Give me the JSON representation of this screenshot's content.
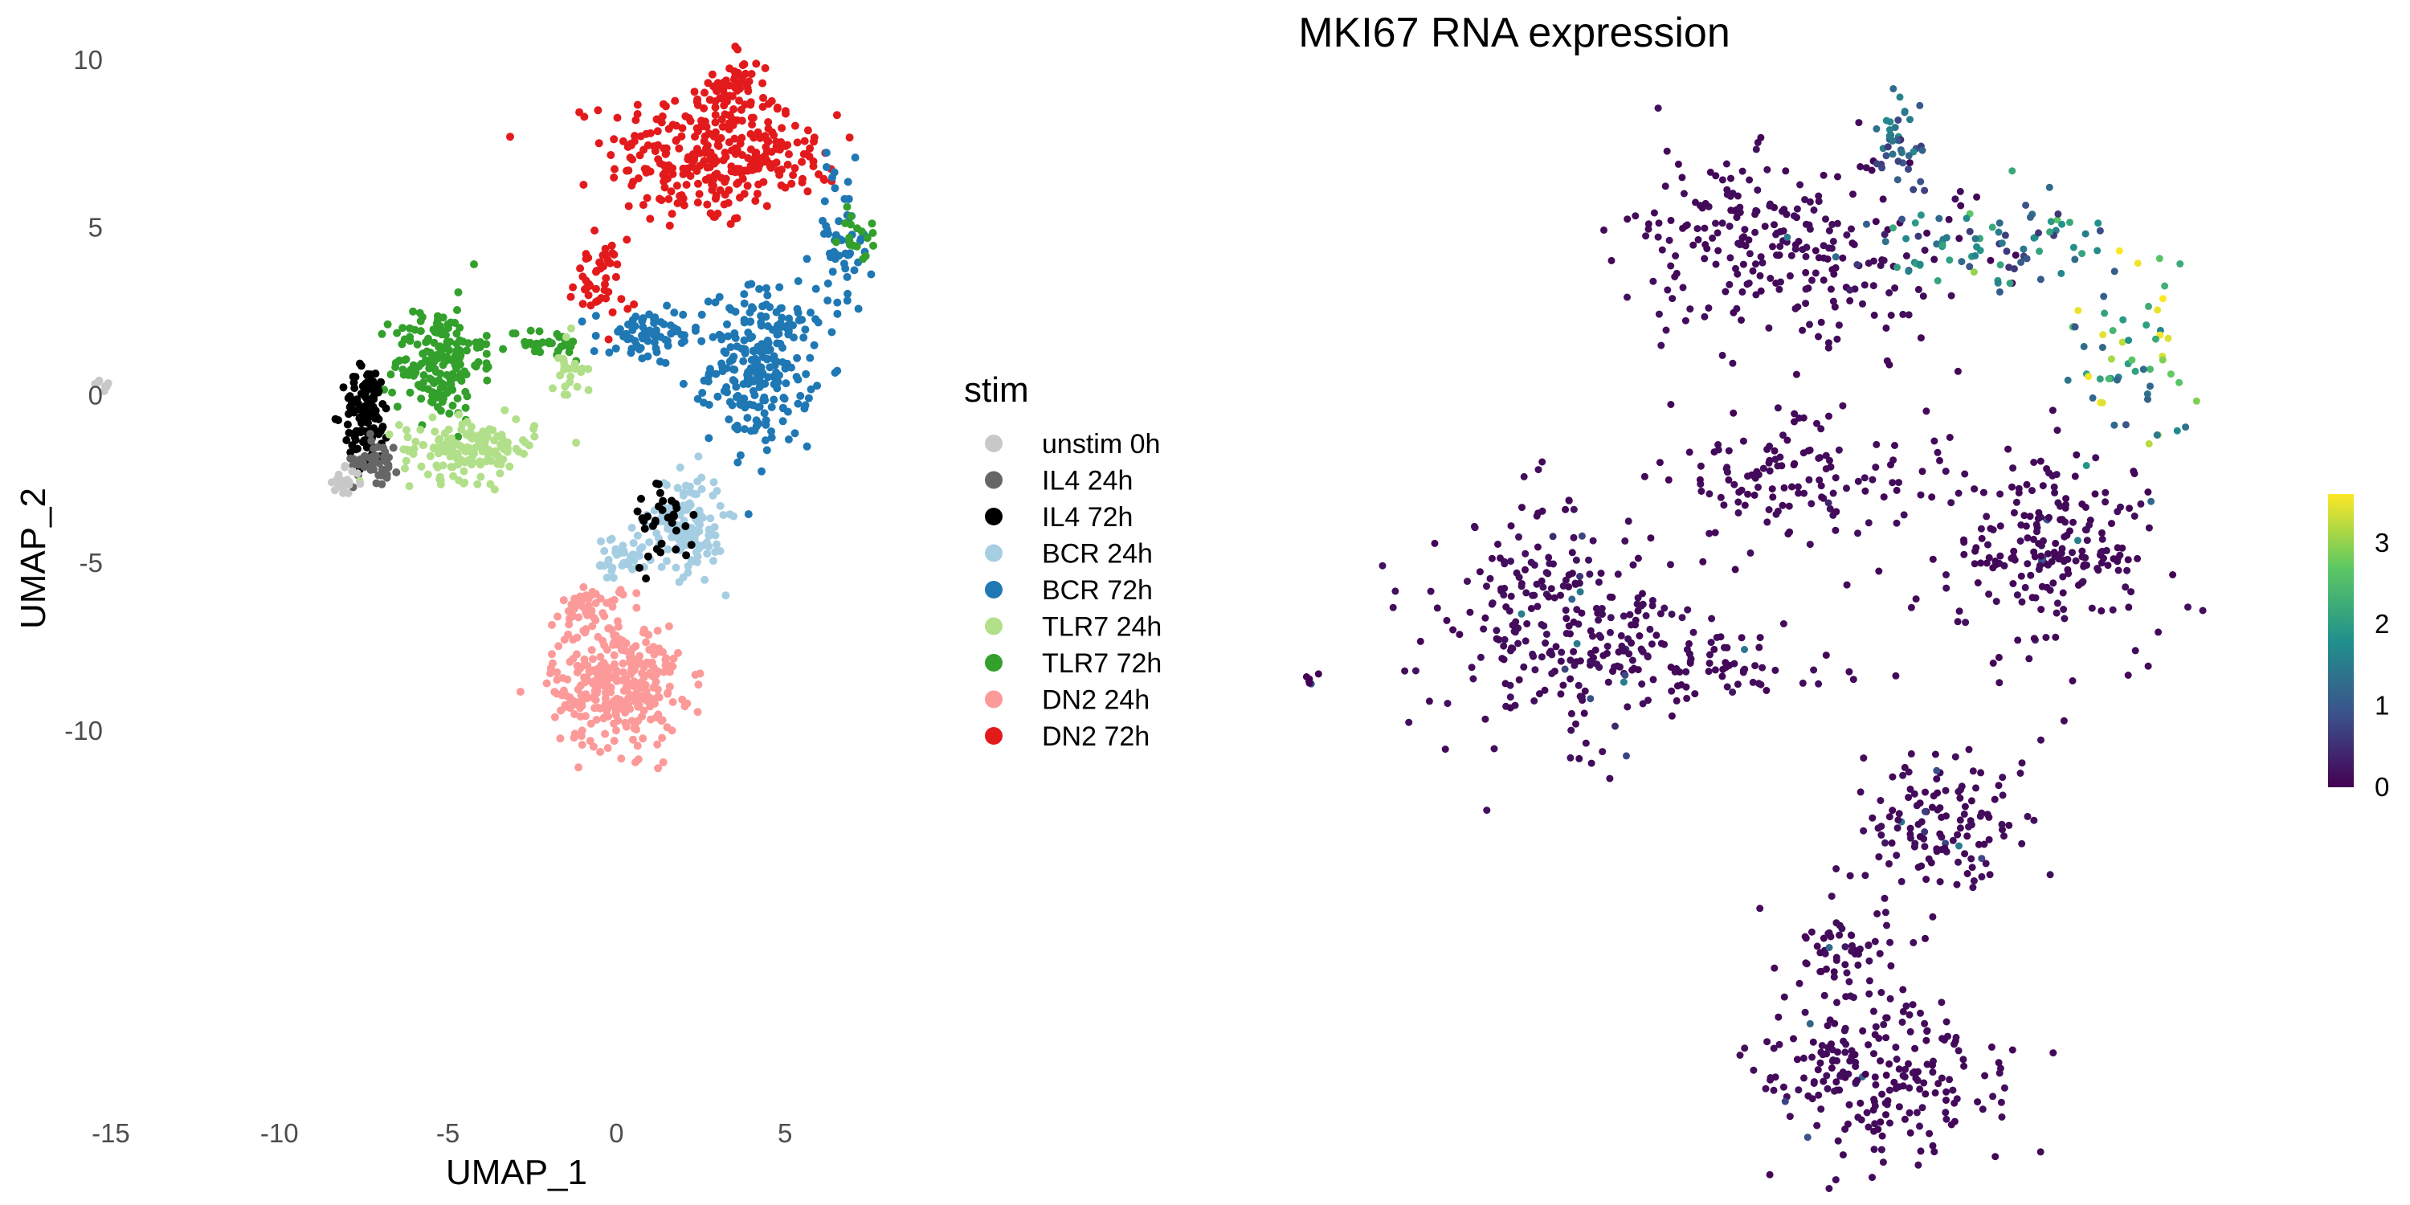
{
  "chart_data": [
    {
      "type": "scatter",
      "title": "",
      "xlabel": "UMAP_1",
      "ylabel": "UMAP_2",
      "xlim": [
        -16,
        8.5
      ],
      "ylim": [
        -12.4,
        10.6
      ],
      "x_ticks": [
        -15,
        -10,
        -5,
        0,
        5
      ],
      "y_ticks": [
        -10,
        -5,
        0,
        5,
        10
      ],
      "grid": false,
      "legend": {
        "title": "stim",
        "placement": "right",
        "entries": [
          {
            "label": "unstim 0h",
            "color": "#c8c8c8"
          },
          {
            "label": "IL4 24h",
            "color": "#666666"
          },
          {
            "label": "IL4 72h",
            "color": "#000000"
          },
          {
            "label": "BCR 24h",
            "color": "#a6cee3"
          },
          {
            "label": "BCR 72h",
            "color": "#1f78b4"
          },
          {
            "label": "TLR7 24h",
            "color": "#b2df8a"
          },
          {
            "label": "TLR7 72h",
            "color": "#33a02c"
          },
          {
            "label": "DN2 24h",
            "color": "#fb9a99"
          },
          {
            "label": "DN2 72h",
            "color": "#e31a1c"
          }
        ]
      },
      "clusters": [
        {
          "group": "DN2 72h",
          "cx": 2.5,
          "cy": 7.2,
          "sx": 1.4,
          "sy": 1.1,
          "n": 260
        },
        {
          "group": "DN2 72h",
          "cx": 3.6,
          "cy": 9.3,
          "sx": 0.35,
          "sy": 0.6,
          "n": 40
        },
        {
          "group": "DN2 72h",
          "cx": 4.8,
          "cy": 7.2,
          "sx": 0.9,
          "sy": 0.6,
          "n": 70
        },
        {
          "group": "DN2 72h",
          "cx": -0.6,
          "cy": 3.4,
          "sx": 0.4,
          "sy": 0.6,
          "n": 45
        },
        {
          "group": "BCR 72h",
          "cx": 4.3,
          "cy": 0.9,
          "sx": 0.75,
          "sy": 1.15,
          "n": 240
        },
        {
          "group": "BCR 72h",
          "cx": 0.9,
          "cy": 1.7,
          "sx": 0.8,
          "sy": 0.45,
          "n": 70
        },
        {
          "group": "BCR 72h",
          "cx": 6.7,
          "cy": 4.6,
          "sx": 0.45,
          "sy": 1.1,
          "n": 60
        },
        {
          "group": "TLR7 72h",
          "cx": -5.3,
          "cy": 1.0,
          "sx": 0.65,
          "sy": 0.85,
          "n": 180
        },
        {
          "group": "TLR7 72h",
          "cx": -2.2,
          "cy": 1.5,
          "sx": 0.7,
          "sy": 0.25,
          "n": 35
        },
        {
          "group": "TLR7 72h",
          "cx": 7.2,
          "cy": 4.8,
          "sx": 0.3,
          "sy": 0.4,
          "n": 18
        },
        {
          "group": "IL4 72h",
          "cx": -7.4,
          "cy": -0.6,
          "sx": 0.35,
          "sy": 0.75,
          "n": 120
        },
        {
          "group": "IL4 24h",
          "cx": -7.1,
          "cy": -1.9,
          "sx": 0.35,
          "sy": 0.35,
          "n": 45
        },
        {
          "group": "TLR7 24h",
          "cx": -4.4,
          "cy": -1.6,
          "sx": 1.0,
          "sy": 0.45,
          "n": 150
        },
        {
          "group": "TLR7 24h",
          "cx": -1.4,
          "cy": 0.8,
          "sx": 0.25,
          "sy": 0.5,
          "n": 25
        },
        {
          "group": "unstim 0h",
          "cx": -8.1,
          "cy": -2.6,
          "sx": 0.25,
          "sy": 0.2,
          "n": 22
        },
        {
          "group": "unstim 0h",
          "cx": -15.2,
          "cy": 0.3,
          "sx": 0.12,
          "sy": 0.08,
          "n": 8
        },
        {
          "group": "BCR 24h",
          "cx": 2.1,
          "cy": -3.8,
          "sx": 0.55,
          "sy": 0.75,
          "n": 140
        },
        {
          "group": "BCR 24h",
          "cx": 0.2,
          "cy": -4.9,
          "sx": 0.45,
          "sy": 0.4,
          "n": 45
        },
        {
          "group": "IL4 72h",
          "cx": 1.4,
          "cy": -3.6,
          "sx": 0.45,
          "sy": 0.7,
          "n": 35
        },
        {
          "group": "DN2 24h",
          "cx": 0.0,
          "cy": -8.6,
          "sx": 0.95,
          "sy": 0.95,
          "n": 320
        },
        {
          "group": "DN2 24h",
          "cx": -0.7,
          "cy": -6.3,
          "sx": 0.45,
          "sy": 0.35,
          "n": 45
        }
      ]
    },
    {
      "type": "scatter",
      "title": "MKI67 RNA expression",
      "xlabel": "",
      "ylabel": "",
      "colorbar": {
        "ticks": [
          0,
          1,
          2,
          3
        ],
        "range": [
          0,
          3.6
        ],
        "colors": [
          "#440154",
          "#3b528b",
          "#21908c",
          "#5dc863",
          "#fde725"
        ]
      },
      "clusters": [
        {
          "cx": 4.3,
          "cy": 6.3,
          "sx": 1.3,
          "sy": 0.9,
          "n": 260,
          "v": 0.1
        },
        {
          "cx": 5.9,
          "cy": 8.3,
          "sx": 0.25,
          "sy": 0.5,
          "n": 40,
          "v": 1.1
        },
        {
          "cx": 7.3,
          "cy": 6.3,
          "sx": 0.9,
          "sy": 0.5,
          "n": 80,
          "v": 1.4
        },
        {
          "cx": 9.5,
          "cy": 4.1,
          "sx": 0.5,
          "sy": 0.9,
          "n": 60,
          "v": 2.3
        },
        {
          "cx": 4.3,
          "cy": 1.6,
          "sx": 1.0,
          "sy": 0.7,
          "n": 130,
          "v": 0.1
        },
        {
          "cx": 8.3,
          "cy": 0.1,
          "sx": 0.8,
          "sy": 1.0,
          "n": 220,
          "v": 0.1
        },
        {
          "cx": 0.8,
          "cy": -1.3,
          "sx": 1.0,
          "sy": 1.15,
          "n": 260,
          "v": 0.12
        },
        {
          "cx": 3.0,
          "cy": -2.2,
          "sx": 1.0,
          "sy": 0.4,
          "n": 80,
          "v": 0.1
        },
        {
          "cx": 6.6,
          "cy": -5.4,
          "sx": 0.6,
          "sy": 0.75,
          "n": 130,
          "v": 0.1
        },
        {
          "cx": 5.0,
          "cy": -8.1,
          "sx": 0.4,
          "sy": 0.5,
          "n": 60,
          "v": 0.1
        },
        {
          "cx": 5.8,
          "cy": -10.5,
          "sx": 0.9,
          "sy": 0.8,
          "n": 220,
          "v": 0.1
        },
        {
          "cx": -3.0,
          "cy": -2.5,
          "sx": 0.12,
          "sy": 0.08,
          "n": 6,
          "v": 0.0
        }
      ]
    }
  ]
}
